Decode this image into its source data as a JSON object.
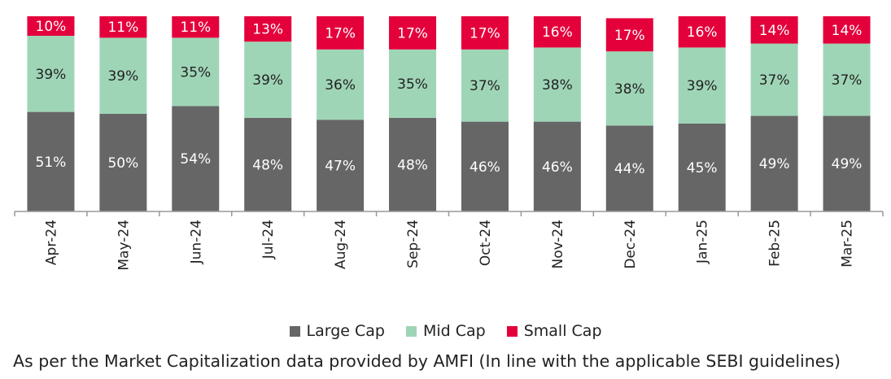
{
  "chart_data": {
    "type": "bar",
    "stacked": true,
    "percent_stacked": true,
    "categories": [
      "Apr-24",
      "May-24",
      "Jun-24",
      "Jul-24",
      "Aug-24",
      "Sep-24",
      "Oct-24",
      "Nov-24",
      "Dec-24",
      "Jan-25",
      "Feb-25",
      "Mar-25"
    ],
    "series": [
      {
        "name": "Large Cap",
        "color": "#666666",
        "values": [
          51,
          50,
          54,
          48,
          47,
          48,
          46,
          46,
          44,
          45,
          49,
          49
        ]
      },
      {
        "name": "Mid Cap",
        "color": "#9fd5b7",
        "values": [
          39,
          39,
          35,
          39,
          36,
          35,
          37,
          38,
          38,
          39,
          37,
          37
        ]
      },
      {
        "name": "Small Cap",
        "color": "#e4003b",
        "values": [
          10,
          11,
          11,
          13,
          17,
          17,
          17,
          16,
          17,
          16,
          14,
          14
        ]
      }
    ],
    "value_suffix": "%",
    "legend_position": "bottom",
    "grid": false,
    "footnote": "As per the Market Capitalization data provided by AMFI (In line with the applicable SEBI guidelines)"
  }
}
